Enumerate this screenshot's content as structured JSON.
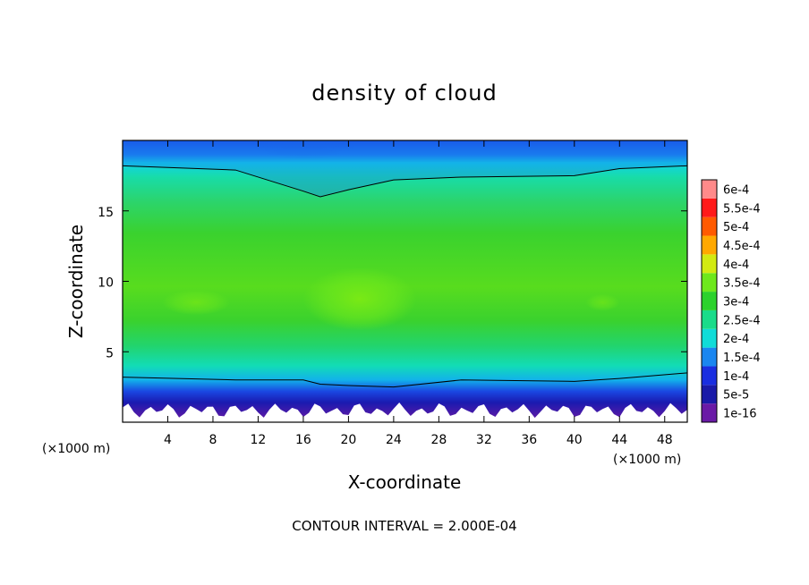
{
  "chart_data": {
    "type": "heatmap",
    "title": "density of cloud",
    "xlabel": "X-coordinate",
    "ylabel": "Z-coordinate",
    "x_unit": "(×1000 m)",
    "x_unit_right": "(×1000 m)",
    "xlim": [
      0,
      50
    ],
    "ylim": [
      0,
      20
    ],
    "x_ticks": [
      "4",
      "8",
      "12",
      "16",
      "20",
      "24",
      "28",
      "32",
      "36",
      "40",
      "44",
      "48"
    ],
    "x_tick_values": [
      4,
      8,
      12,
      16,
      20,
      24,
      28,
      32,
      36,
      40,
      44,
      48
    ],
    "y_ticks": [
      "5",
      "10",
      "15"
    ],
    "y_tick_values": [
      5,
      10,
      15
    ],
    "footer": "CONTOUR INTERVAL = 2.000E-04",
    "colorbar": {
      "labels": [
        "1e-16",
        "5e-5",
        "1e-4",
        "1.5e-4",
        "2e-4",
        "2.5e-4",
        "3e-4",
        "3.5e-4",
        "4e-4",
        "4.5e-4",
        "5e-4",
        "5.5e-4",
        "6e-4"
      ],
      "colors": [
        "#6a1aa6",
        "#1a1aa8",
        "#1a2ee0",
        "#1a86f0",
        "#10dcd8",
        "#1adc8a",
        "#2cd22c",
        "#6ee81c",
        "#d2ea12",
        "#ffa800",
        "#ff5a00",
        "#ff1a1a",
        "#ff8a8a"
      ]
    },
    "profile": {
      "x": [
        0,
        10,
        16,
        17.5,
        20,
        24,
        30,
        40,
        44,
        50
      ],
      "cloud_top_z": [
        18.2,
        17.9,
        16.4,
        16.0,
        16.5,
        17.2,
        17.4,
        17.5,
        18.0,
        18.2
      ],
      "cloud_base_z": [
        3.2,
        3.0,
        3.0,
        2.7,
        2.6,
        2.5,
        3.0,
        2.9,
        3.1,
        3.5
      ],
      "core_x_range": [
        16,
        26
      ],
      "core_z_range": [
        6.5,
        11
      ],
      "max_density": 0.00038
    }
  }
}
